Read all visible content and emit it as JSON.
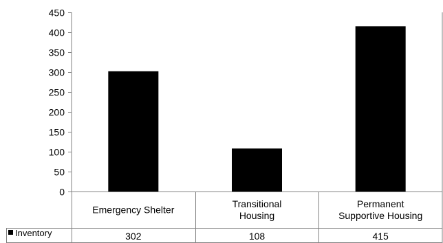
{
  "chart_data": {
    "type": "bar",
    "categories": [
      [
        "Emergency Shelter"
      ],
      [
        "Transitional",
        "Housing"
      ],
      [
        "Permanent",
        "Supportive Housing"
      ]
    ],
    "series": [
      {
        "name": "Inventory",
        "values": [
          302,
          108,
          415
        ],
        "color": "#000000"
      }
    ],
    "table_values": [
      "302",
      "108",
      "415"
    ],
    "ylim": [
      0,
      450
    ],
    "yticks": [
      0,
      50,
      100,
      150,
      200,
      250,
      300,
      350,
      400,
      450
    ],
    "grid": false,
    "legend": "data-table-left",
    "colors": {
      "bar": "#000000",
      "axis": "#808080",
      "grid_line": "#808080"
    }
  }
}
